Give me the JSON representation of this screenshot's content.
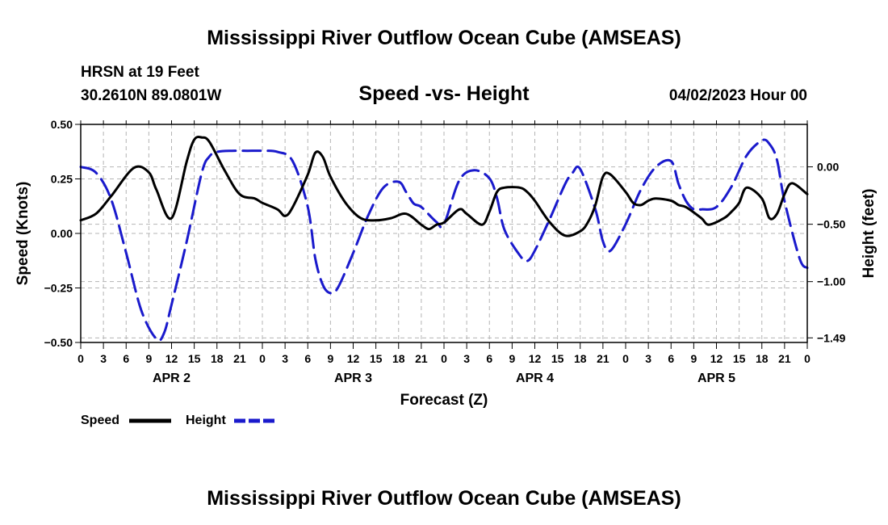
{
  "header": {
    "title": "Mississippi River Outflow Ocean Cube (AMSEAS)",
    "station": "HRSN at 19 Feet",
    "coords": "30.2610N  89.0801W",
    "subtitle": "Speed -vs- Height",
    "datetime": "04/02/2023 Hour 00"
  },
  "footer": {
    "title": "Mississippi River Outflow Ocean Cube (AMSEAS)"
  },
  "legend": {
    "speed_label": "Speed",
    "height_label": "Height"
  },
  "colors": {
    "speed": "#000000",
    "height": "#1a1acc",
    "grid": "#b4b4b4"
  },
  "chart_data": {
    "type": "line",
    "title": "Speed -vs- Height",
    "xlabel": "Forecast (Z)",
    "ylabel": "Speed (Knots)",
    "y2label": "Height (feet)",
    "x_range_hours": [
      0,
      96
    ],
    "x_tick_labels": [
      "0",
      "3",
      "6",
      "9",
      "12",
      "15",
      "18",
      "21",
      "0",
      "3",
      "6",
      "9",
      "12",
      "15",
      "18",
      "21",
      "0",
      "3",
      "6",
      "9",
      "12",
      "15",
      "18",
      "21",
      "0",
      "3",
      "6",
      "9",
      "12",
      "15",
      "18",
      "21",
      "0"
    ],
    "date_labels": [
      {
        "label": "APR 2",
        "hour": 12
      },
      {
        "label": "APR 3",
        "hour": 36
      },
      {
        "label": "APR 4",
        "hour": 60
      },
      {
        "label": "APR 5",
        "hour": 84
      }
    ],
    "ylim": [
      -0.5,
      0.5
    ],
    "y_ticks": [
      "0.50",
      "0.25",
      "0.00",
      "-0.25",
      "-0.50"
    ],
    "y2lim": [
      -1.53,
      0.37
    ],
    "y2_ticks": [
      {
        "label": "0.00",
        "value": 0.0
      },
      {
        "label": "-0.50",
        "value": -0.5
      },
      {
        "label": "-1.00",
        "value": -1.0
      },
      {
        "label": "-1.49",
        "value": -1.49
      }
    ],
    "series": [
      {
        "name": "Speed",
        "axis": "left",
        "style": "solid",
        "hours": [
          0,
          2,
          4,
          7,
          9,
          10,
          12,
          14,
          15,
          16,
          17,
          19,
          21,
          23,
          24,
          26,
          27,
          28,
          30,
          31,
          32,
          33,
          35,
          37,
          39,
          41,
          43,
          45,
          46,
          47,
          48,
          50,
          51,
          53,
          54,
          55,
          56,
          58,
          59,
          60,
          62,
          64,
          66,
          67,
          68,
          69,
          70,
          72,
          73,
          74,
          75,
          76,
          78,
          79,
          80,
          82,
          83,
          85,
          86,
          87,
          88,
          90,
          91,
          92,
          93,
          94,
          96
        ],
        "values": [
          0.06,
          0.09,
          0.17,
          0.3,
          0.28,
          0.2,
          0.07,
          0.33,
          0.43,
          0.44,
          0.42,
          0.29,
          0.18,
          0.16,
          0.14,
          0.11,
          0.08,
          0.12,
          0.27,
          0.37,
          0.35,
          0.26,
          0.14,
          0.07,
          0.06,
          0.07,
          0.09,
          0.04,
          0.02,
          0.04,
          0.05,
          0.11,
          0.09,
          0.04,
          0.1,
          0.19,
          0.21,
          0.21,
          0.19,
          0.15,
          0.05,
          -0.01,
          0.01,
          0.05,
          0.13,
          0.26,
          0.27,
          0.19,
          0.14,
          0.13,
          0.15,
          0.16,
          0.15,
          0.13,
          0.12,
          0.07,
          0.04,
          0.07,
          0.1,
          0.14,
          0.21,
          0.16,
          0.07,
          0.09,
          0.18,
          0.23,
          0.18
        ]
      },
      {
        "name": "Height",
        "axis": "right",
        "style": "dashed",
        "hours": [
          0,
          2,
          4,
          6,
          8,
          10,
          11,
          12,
          14,
          16,
          17,
          18,
          20,
          22,
          24,
          26,
          28,
          30,
          31,
          32,
          33,
          34,
          36,
          38,
          40,
          42,
          43,
          44,
          45,
          47,
          48,
          50,
          52,
          54,
          55,
          56,
          58,
          59,
          60,
          62,
          64,
          65,
          66,
          68,
          69,
          70,
          72,
          74,
          76,
          78,
          79,
          80,
          81,
          82,
          84,
          86,
          88,
          90,
          91,
          92,
          93,
          95,
          96
        ],
        "values": [
          0.0,
          -0.05,
          -0.28,
          -0.75,
          -1.25,
          -1.5,
          -1.45,
          -1.2,
          -0.65,
          -0.05,
          0.09,
          0.13,
          0.14,
          0.14,
          0.14,
          0.13,
          0.05,
          -0.35,
          -0.8,
          -1.03,
          -1.1,
          -1.05,
          -0.75,
          -0.42,
          -0.18,
          -0.13,
          -0.22,
          -0.32,
          -0.35,
          -0.48,
          -0.5,
          -0.12,
          -0.03,
          -0.1,
          -0.27,
          -0.55,
          -0.77,
          -0.82,
          -0.73,
          -0.45,
          -0.15,
          -0.05,
          -0.02,
          -0.37,
          -0.65,
          -0.73,
          -0.5,
          -0.2,
          0.0,
          0.05,
          -0.15,
          -0.3,
          -0.37,
          -0.37,
          -0.35,
          -0.17,
          0.1,
          0.23,
          0.2,
          0.06,
          -0.3,
          -0.8,
          -0.88
        ]
      }
    ]
  }
}
